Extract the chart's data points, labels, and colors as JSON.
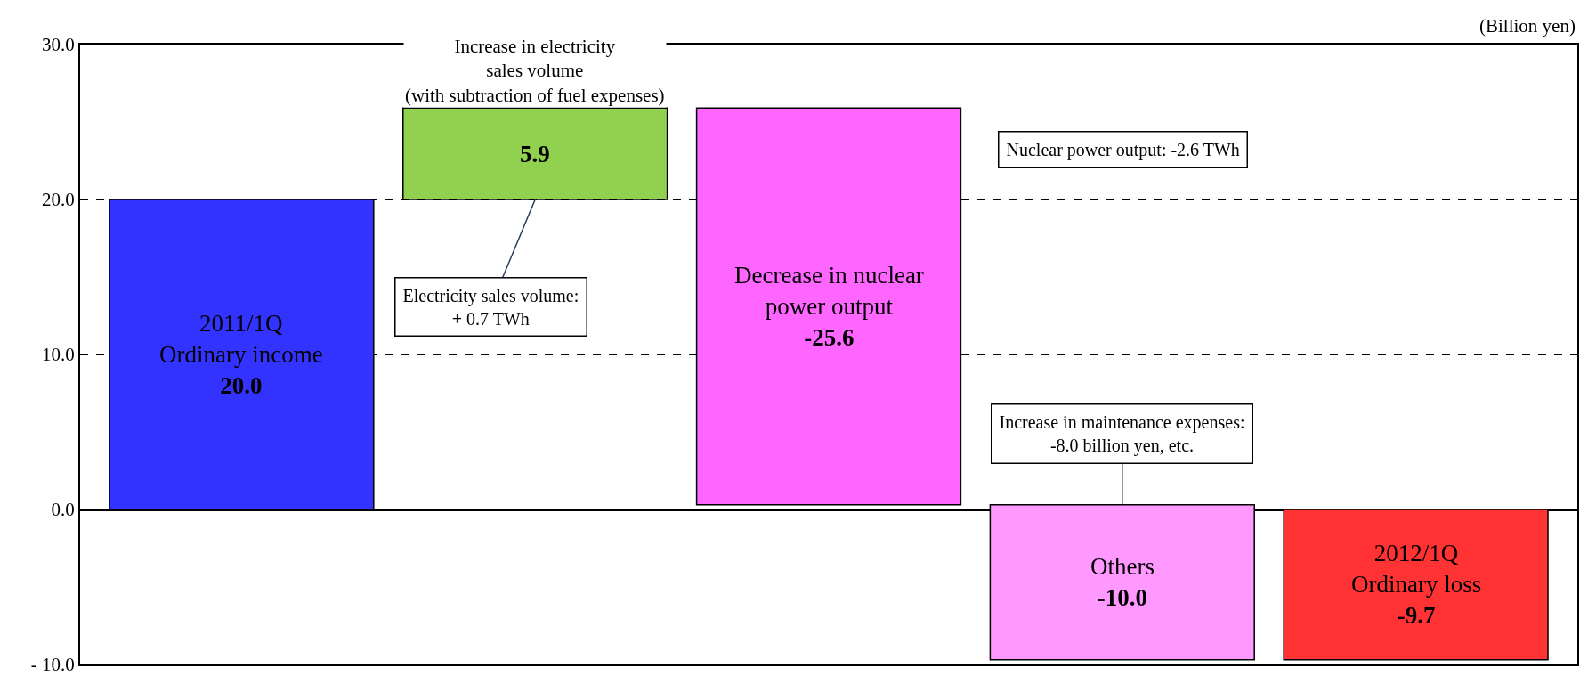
{
  "chart_data": {
    "type": "bar",
    "ylabel": "(Billion yen)",
    "categories": [
      "2011/1Q\nOrdinary income",
      "Increase in electricity\nsales volume\n(with subtraction of fuel expenses)",
      "Decrease in nuclear\npower output",
      "Others",
      "2012/1Q\nOrdinary loss"
    ],
    "values": [
      20.0,
      5.9,
      -25.6,
      -10.0,
      -9.7
    ],
    "base": [
      0,
      20.0,
      25.9,
      0.3,
      0
    ],
    "value_labels": [
      "20.0",
      "5.9",
      "-25.6",
      "-10.0",
      "-9.7"
    ],
    "colors": [
      "#3333ff",
      "#92d050",
      "#ff66ff",
      "#ff99ff",
      "#ff3333"
    ],
    "ylim": [
      -10,
      30
    ],
    "yticks": [
      {
        "value": -10,
        "label": "- 10.0"
      },
      {
        "value": 0,
        "label": "0.0"
      },
      {
        "value": 10,
        "label": "10.0"
      },
      {
        "value": 20,
        "label": "20.0"
      },
      {
        "value": 30,
        "label": "30.0"
      }
    ],
    "grid": "y",
    "tick_labels": "y",
    "annotations": [
      {
        "text": "Electricity sales volume:\n+ 0.7 TWh",
        "x": "Increase in electricity\nsales volume\n(with subtraction of fuel expenses)",
        "y": 20.0
      },
      "Nuclear power output: -2.6 TWh",
      {
        "text": "Increase in maintenance expenses:\n-8.0 billion yen, etc.",
        "x": "Others",
        "y": 0.3
      }
    ]
  }
}
